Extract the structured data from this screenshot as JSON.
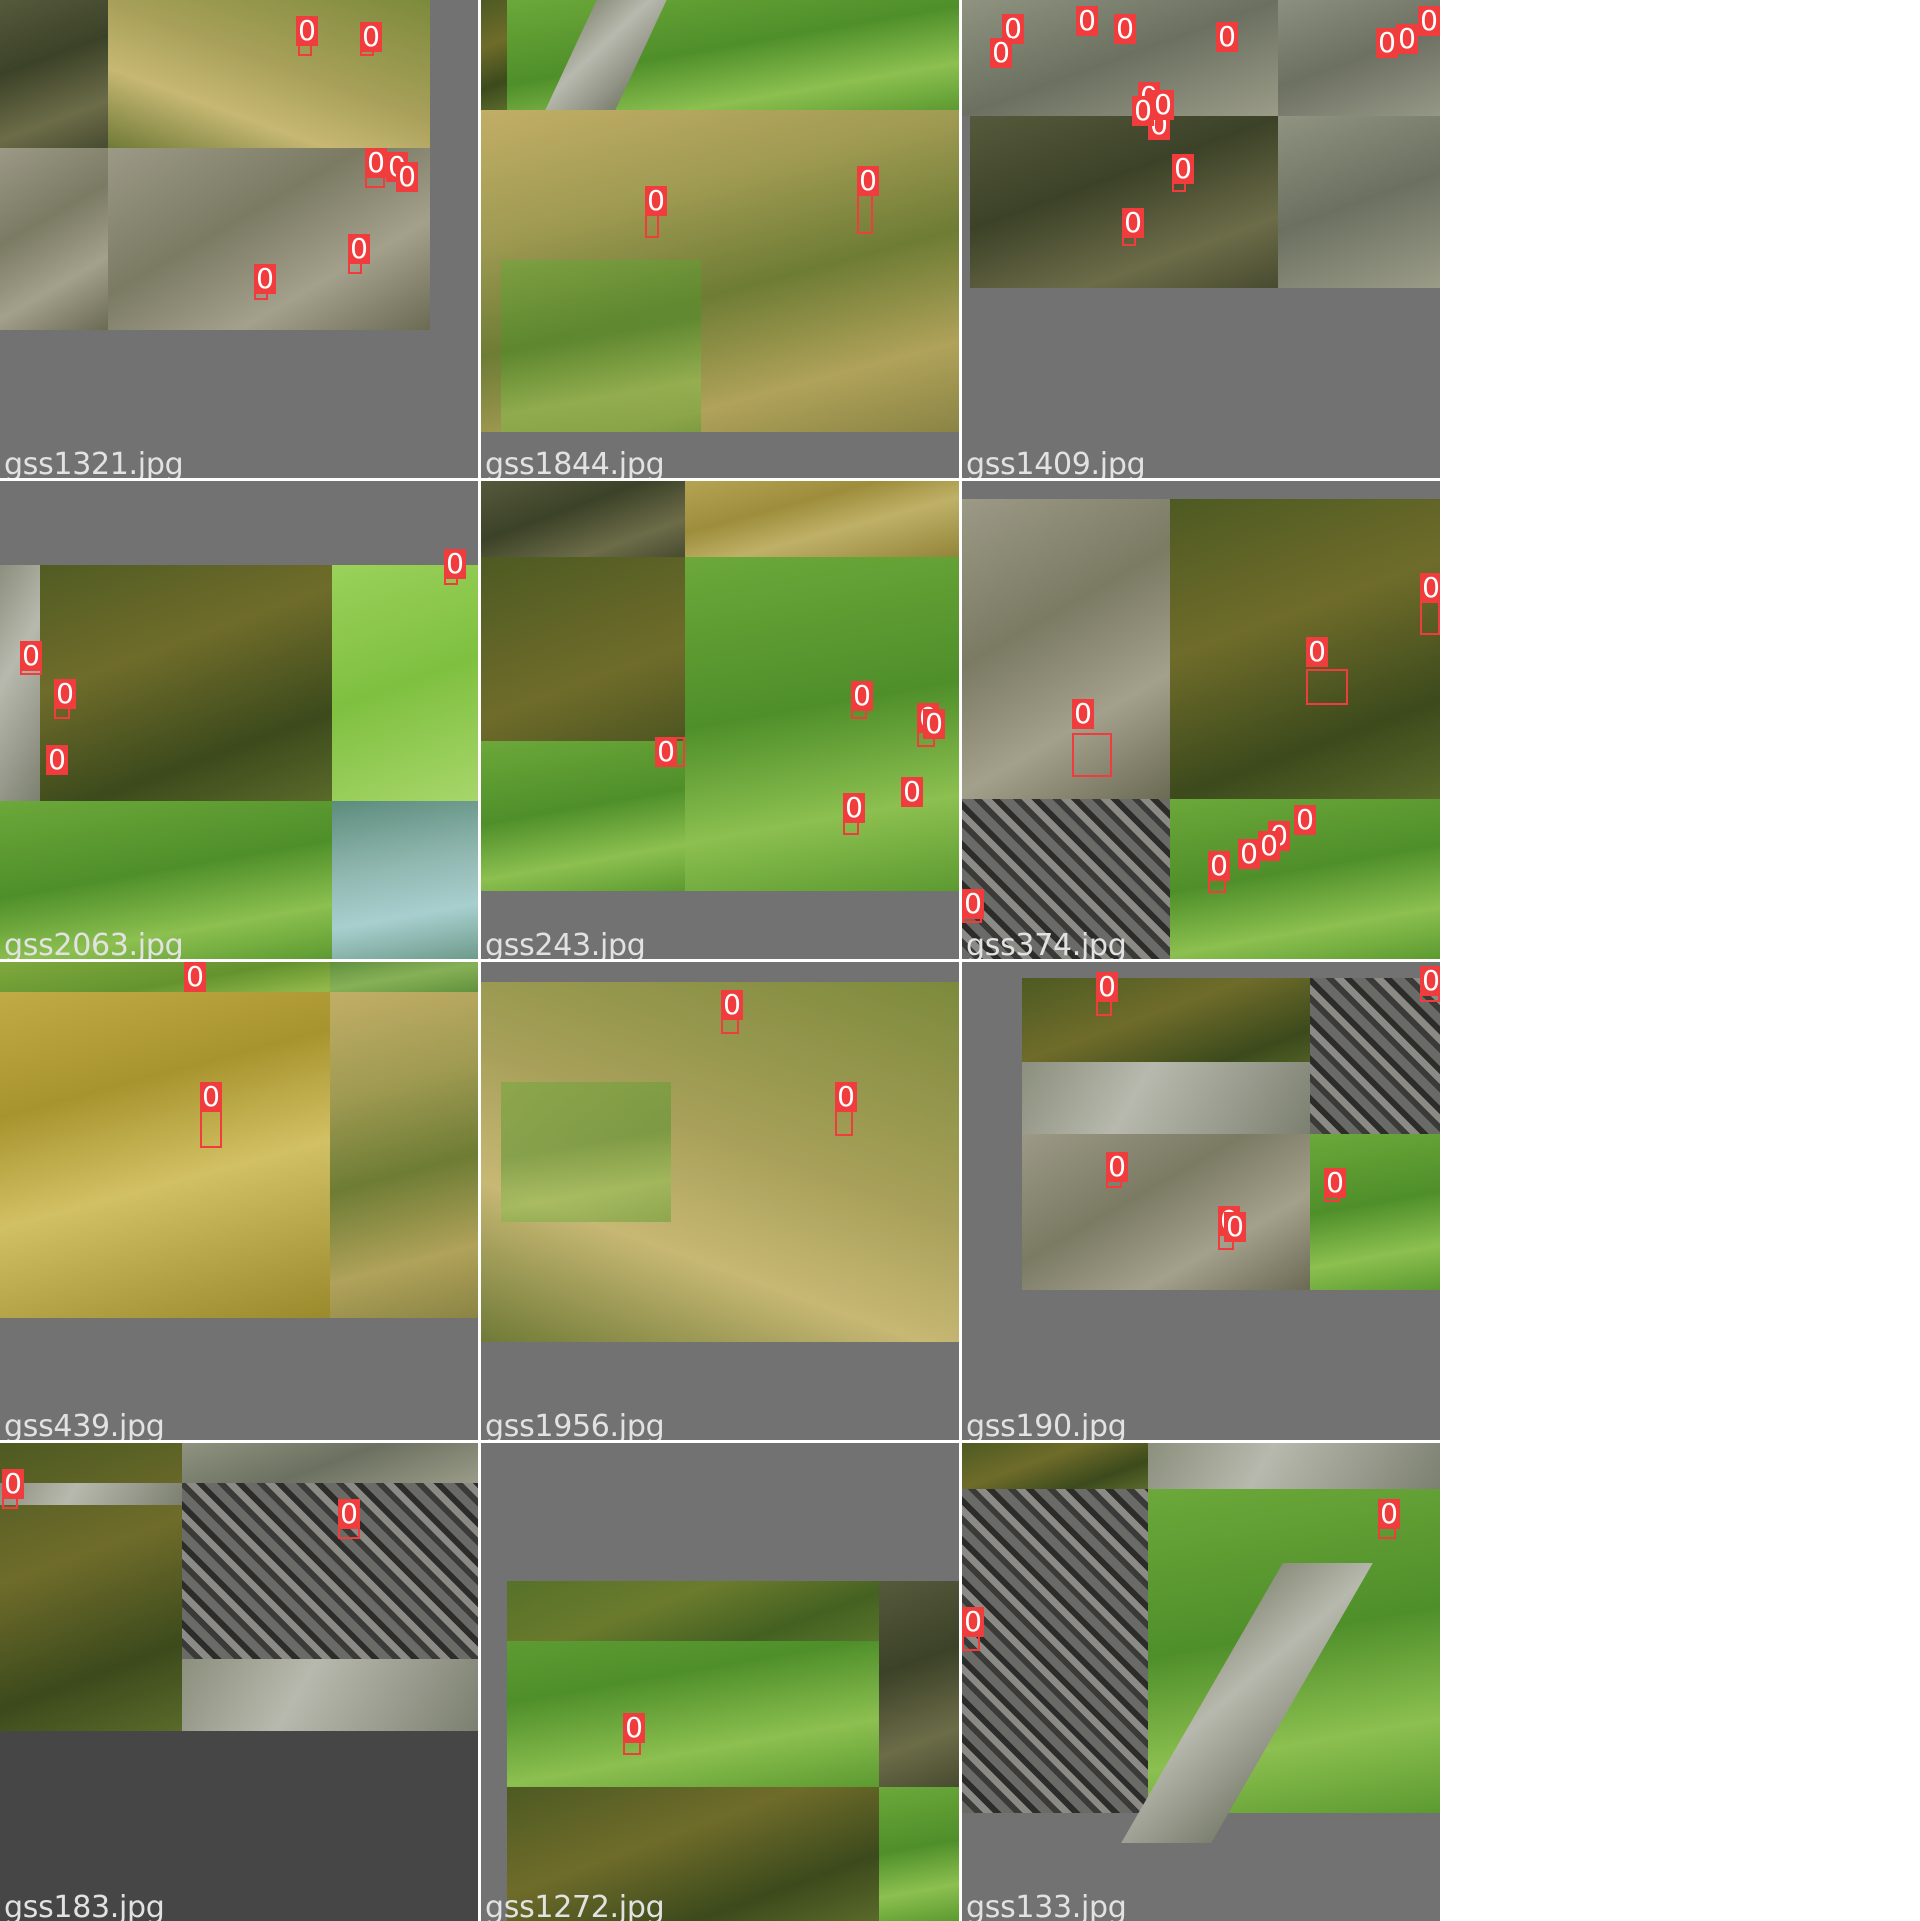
{
  "mosaic": {
    "cells": [
      {
        "caption": "gss1321.jpg",
        "labels": [
          "0",
          "0",
          "0",
          "0",
          "0",
          "0",
          "0"
        ]
      },
      {
        "caption": "gss1844.jpg",
        "labels": [
          "0",
          "0"
        ]
      },
      {
        "caption": "gss1409.jpg",
        "labels": [
          "0",
          "0",
          "0",
          "0",
          "0",
          "0",
          "0",
          "0",
          "0",
          "0",
          "0",
          "0",
          "0",
          "0"
        ]
      },
      {
        "caption": "gss2063.jpg",
        "labels": [
          "0",
          "0",
          "0",
          "0"
        ]
      },
      {
        "caption": "gss243.jpg",
        "labels": [
          "0",
          "0",
          "0",
          "0",
          "0",
          "0"
        ]
      },
      {
        "caption": "gss374.jpg",
        "labels": [
          "0",
          "0",
          "0",
          "0",
          "0",
          "0",
          "0",
          "0",
          "0"
        ]
      },
      {
        "caption": "gss439.jpg",
        "labels": [
          "0",
          "0"
        ]
      },
      {
        "caption": "gss1956.jpg",
        "labels": [
          "0",
          "0"
        ]
      },
      {
        "caption": "gss190.jpg",
        "labels": [
          "0",
          "0",
          "0",
          "0",
          "0",
          "0"
        ]
      },
      {
        "caption": "gss183.jpg",
        "labels": [
          "0",
          "0"
        ]
      },
      {
        "caption": "gss1272.jpg",
        "labels": [
          "0"
        ]
      },
      {
        "caption": "gss133.jpg",
        "labels": [
          "0",
          "0"
        ]
      }
    ],
    "class_label": "0",
    "box_color": "#f03c3c",
    "padding_color": "#727272"
  }
}
